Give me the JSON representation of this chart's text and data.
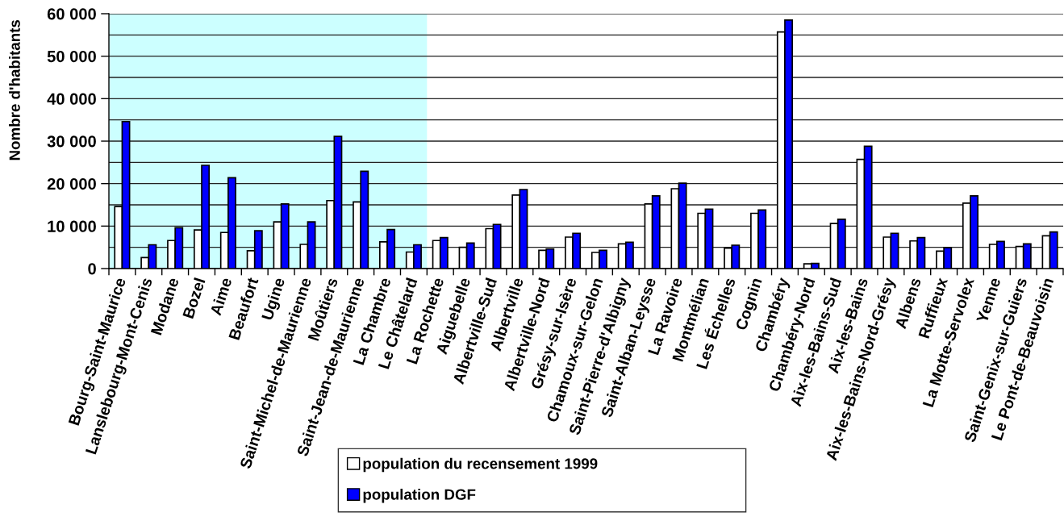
{
  "chart_data": {
    "type": "bar",
    "ylabel": "Nombre d'habitants",
    "categories": [
      "Bourg-Saint-Maurice",
      "Lanslebourg-Mont-Cenis",
      "Modane",
      "Bozel",
      "Aime",
      "Beaufort",
      "Ugine",
      "Saint-Michel-de-Maurienne",
      "Moûtiers",
      "Saint-Jean-de-Maurienne",
      "La Chambre",
      "Le Châtelard",
      "La Rochette",
      "Aiguebelle",
      "Albertville-Sud",
      "Albertville",
      "Albertville-Nord",
      "Grésy-sur-Isère",
      "Chamoux-sur-Gelon",
      "Saint-Pierre-d'Albigny",
      "Saint-Alban-Leysse",
      "La Ravoire",
      "Montmélian",
      "Les Échelles",
      "Cognin",
      "Chambéry",
      "Chambéry-Nord",
      "Aix-les-Bains-Sud",
      "Aix-les-Bains",
      "Aix-les-Bains-Nord-Grésy",
      "Albens",
      "Ruffieux",
      "La Motte-Servolex",
      "Yenne",
      "Saint-Genix-sur-Guiers",
      "Le Pont-de-Beauvoisin"
    ],
    "series": [
      {
        "name": "population du recensement 1999",
        "color": "#ffffff",
        "values": [
          14600,
          2600,
          6600,
          9100,
          8500,
          4200,
          11000,
          5700,
          16000,
          15700,
          6300,
          3900,
          6600,
          5000,
          9400,
          17300,
          4300,
          7400,
          3800,
          5800,
          15200,
          18800,
          13000,
          4800,
          13000,
          55700,
          1100,
          10600,
          25700,
          7400,
          6500,
          4100,
          15400,
          5700,
          5200,
          7700
        ]
      },
      {
        "name": "population DGF",
        "color": "#0000ff",
        "values": [
          34600,
          5600,
          9600,
          24300,
          21400,
          8900,
          15200,
          11000,
          31100,
          22900,
          9200,
          5600,
          7300,
          6000,
          10400,
          18600,
          4600,
          8300,
          4300,
          6200,
          17100,
          20100,
          14000,
          5500,
          13800,
          58500,
          1200,
          11600,
          28800,
          8300,
          7300,
          4900,
          17100,
          6400,
          5800,
          8600
        ]
      }
    ],
    "ylim": [
      0,
      60000
    ],
    "yticks": [
      0,
      {
        "value": 5000,
        "label": null
      },
      {
        "value": 10000,
        "label": "10 000"
      },
      {
        "value": 15000,
        "label": null
      },
      {
        "value": 20000,
        "label": "20 000"
      },
      {
        "value": 25000,
        "label": null
      },
      {
        "value": 30000,
        "label": "30 000"
      },
      {
        "value": 35000,
        "label": null
      },
      {
        "value": 40000,
        "label": "40 000"
      },
      {
        "value": 45000,
        "label": null
      },
      {
        "value": 50000,
        "label": "50 000"
      },
      {
        "value": 55000,
        "label": null
      },
      {
        "value": 60000,
        "label": "60 000"
      }
    ],
    "grid": "y",
    "legend": "bottom",
    "bands": [
      {
        "axis": "x",
        "from": "Bourg-Saint-Maurice",
        "to": "Le Châtelard",
        "color": "#ccffff"
      }
    ]
  }
}
